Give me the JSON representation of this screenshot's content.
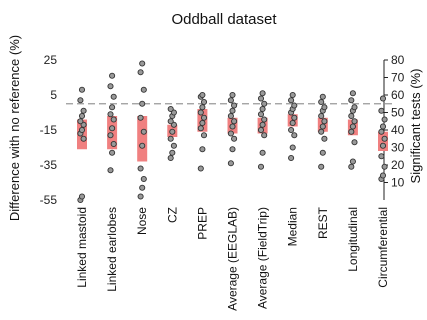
{
  "chart_data": {
    "type": "scatter",
    "title": "Oddball dataset",
    "ylabel": "Difference with no reference (%)",
    "ylabel_right": "Significant tests (%)",
    "ylim": [
      -55,
      25
    ],
    "yticks": [
      -55,
      -35,
      -15,
      5,
      25
    ],
    "ylim_right": [
      0,
      80
    ],
    "yticks_right": [
      10,
      20,
      30,
      40,
      50,
      60,
      70,
      80
    ],
    "reference_line": {
      "y": 0,
      "style": "dashed",
      "color": "#999999"
    },
    "colors": {
      "bar": "#f08080",
      "point_edge": "#333333",
      "point_fill": "#999999"
    },
    "categories": [
      "Linked mastoid",
      "Linked earlobes",
      "Nose",
      "CZ",
      "PREP",
      "Average (EEGLAB)",
      "Average (FieldTrip)",
      "Median",
      "REST",
      "Longitudinal",
      "Circumferential"
    ],
    "bar_ranges": [
      [
        -26,
        -9
      ],
      [
        -26,
        -7
      ],
      [
        -33,
        -7
      ],
      [
        -19,
        -12
      ],
      [
        -16,
        -3
      ],
      [
        -17,
        -8
      ],
      [
        -17,
        -8
      ],
      [
        -13,
        -6
      ],
      [
        -16,
        -8
      ],
      [
        -18,
        -9
      ],
      [
        -27,
        -16
      ]
    ],
    "points": [
      [
        -55,
        -53,
        -20,
        -17,
        -15,
        -12,
        -10,
        -7,
        -4,
        2,
        8
      ],
      [
        -38,
        -28,
        -23,
        -18,
        -14,
        -9,
        -6,
        -2,
        4,
        10,
        16
      ],
      [
        -53,
        -48,
        -43,
        -37,
        -24,
        -16,
        -8,
        0,
        8,
        18,
        23
      ],
      [
        -31,
        -28,
        -24,
        -20,
        -16,
        -12,
        -10,
        -7,
        -5,
        -3
      ],
      [
        -37,
        -26,
        -18,
        -14,
        -11,
        -8,
        -5,
        -2,
        1,
        4,
        5
      ],
      [
        -34,
        -26,
        -20,
        -17,
        -13,
        -10,
        -7,
        -4,
        -1,
        2,
        5
      ],
      [
        -36,
        -28,
        -18,
        -15,
        -12,
        -9,
        -6,
        -3,
        0,
        3,
        6
      ],
      [
        -31,
        -25,
        -18,
        -15,
        -11,
        -8,
        -5,
        -3,
        -1,
        2,
        5
      ],
      [
        -36,
        -28,
        -20,
        -16,
        -13,
        -10,
        -7,
        -4,
        -2,
        1,
        4
      ],
      [
        -36,
        -33,
        -22,
        -16,
        -13,
        -10,
        -7,
        -4,
        -2,
        2,
        6
      ],
      [
        -43,
        -41,
        -36,
        -30,
        -24,
        -20,
        -16,
        -13,
        -9,
        -4,
        3
      ]
    ]
  }
}
